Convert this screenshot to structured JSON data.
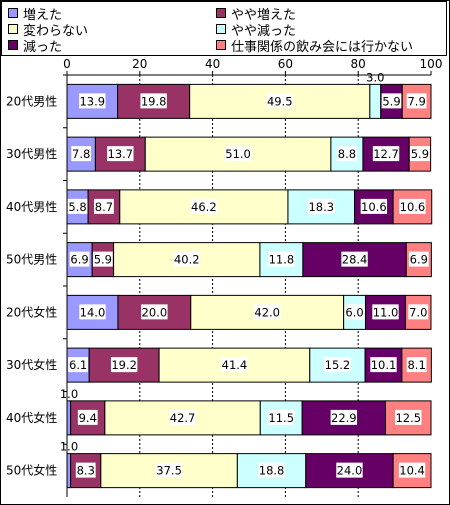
{
  "chart_data": {
    "type": "bar",
    "orientation": "horizontal",
    "stacked": true,
    "normalized": true,
    "xlim": [
      0,
      100
    ],
    "x_ticks": [
      "0",
      "20",
      "40",
      "60",
      "80",
      "100"
    ],
    "grid": true,
    "legend_position": "top",
    "categories": [
      "20代男性",
      "30代男性",
      "40代男性",
      "50代男性",
      "20代女性",
      "30代女性",
      "40代女性",
      "50代女性"
    ],
    "series": [
      {
        "name": "増えた",
        "color": "#9999ff",
        "values": [
          13.9,
          7.8,
          5.8,
          6.9,
          14.0,
          6.1,
          1.0,
          1.0
        ]
      },
      {
        "name": "やや増えた",
        "color": "#993366",
        "values": [
          19.8,
          13.7,
          8.7,
          5.9,
          20.0,
          19.2,
          9.4,
          8.3
        ]
      },
      {
        "name": "変わらない",
        "color": "#ffffcc",
        "values": [
          49.5,
          51.0,
          46.2,
          40.2,
          42.0,
          41.4,
          42.7,
          37.5
        ]
      },
      {
        "name": "やや減った",
        "color": "#ccffff",
        "values": [
          3.0,
          8.8,
          18.3,
          11.8,
          6.0,
          15.2,
          11.5,
          18.8
        ]
      },
      {
        "name": "減った",
        "color": "#660066",
        "values": [
          5.9,
          12.7,
          10.6,
          28.4,
          11.0,
          10.1,
          22.9,
          24.0
        ]
      },
      {
        "name": "仕事関係の飲み会には行かない",
        "color": "#ff8080",
        "values": [
          7.9,
          5.9,
          10.6,
          6.9,
          7.0,
          8.1,
          12.5,
          10.4
        ]
      }
    ],
    "data_labels": [
      [
        "13.9",
        "19.8",
        "49.5",
        "3.0",
        "5.9",
        "7.9"
      ],
      [
        "7.8",
        "13.7",
        "51.0",
        "8.8",
        "12.7",
        "5.9"
      ],
      [
        "5.8",
        "8.7",
        "46.2",
        "18.3",
        "10.6",
        "10.6"
      ],
      [
        "6.9",
        "5.9",
        "40.2",
        "11.8",
        "28.4",
        "6.9"
      ],
      [
        "14.0",
        "20.0",
        "42.0",
        "6.0",
        "11.0",
        "7.0"
      ],
      [
        "6.1",
        "19.2",
        "41.4",
        "15.2",
        "10.1",
        "8.1"
      ],
      [
        "1.0",
        "9.4",
        "42.7",
        "11.5",
        "22.9",
        "12.5"
      ],
      [
        "1.0",
        "8.3",
        "37.5",
        "18.8",
        "24.0",
        "10.4"
      ]
    ],
    "label_text_colors": [
      "#000000",
      "#ffffff",
      "#000000",
      "#000000",
      "#ffffff",
      "#000000"
    ]
  }
}
